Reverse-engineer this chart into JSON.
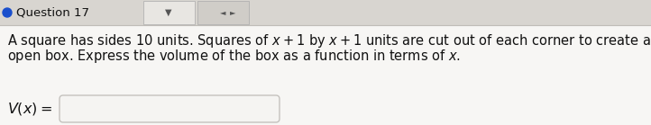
{
  "bg_color": "#f0eeeb",
  "header_bg": "#d8d5d0",
  "body_bg": "#f7f6f4",
  "header_text": "Question 17",
  "header_bullet_color": "#1a4fcc",
  "body_text_line1": "A square has sides 10 units. Squares of $x+1$ by $x+1$ units are cut out of each corner to create an",
  "body_text_line2": "open box. Express the volume of the box as a function in terms of $x$.",
  "vx_label": "$V(x)=$",
  "font_size_body": 10.5,
  "font_size_header": 9.5,
  "text_color": "#111111",
  "separator_color": "#c0bdb8",
  "input_box_color": "#c5c2be",
  "input_box_fill": "#f5f4f2"
}
